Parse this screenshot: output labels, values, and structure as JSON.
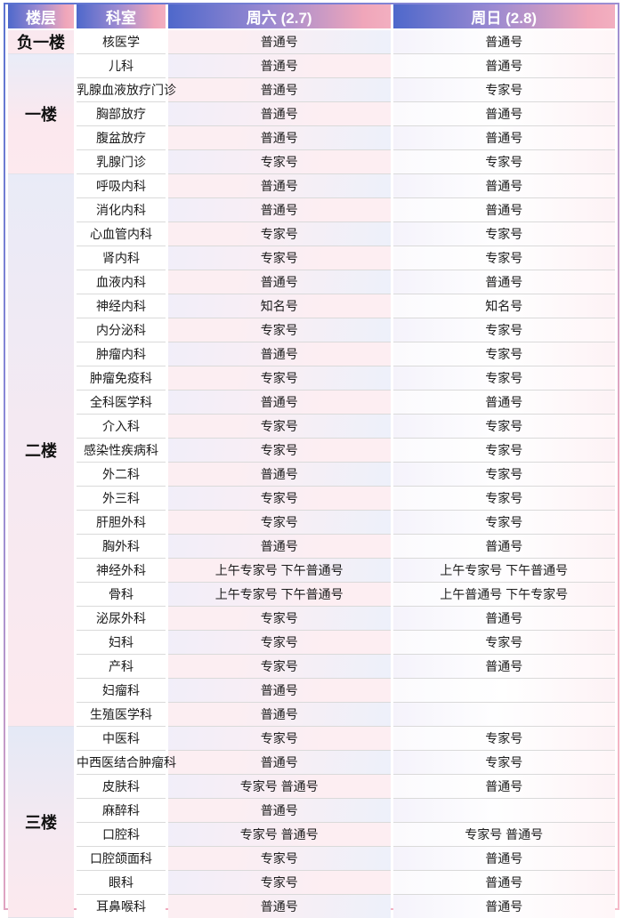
{
  "header": {
    "columns": [
      "楼层",
      "科室",
      "周六 (2.7)",
      "周日 (2.8)"
    ]
  },
  "floors": [
    {
      "label": "负一楼",
      "departments": [
        {
          "name": "核医学",
          "sat": "普通号",
          "sun": "普通号"
        }
      ]
    },
    {
      "label": "一楼",
      "departments": [
        {
          "name": "儿科",
          "sat": "普通号",
          "sun": "普通号"
        },
        {
          "name": "乳腺血液放疗门诊",
          "sat": "普通号",
          "sun": "专家号"
        },
        {
          "name": "胸部放疗",
          "sat": "普通号",
          "sun": "普通号"
        },
        {
          "name": "腹盆放疗",
          "sat": "普通号",
          "sun": "普通号"
        },
        {
          "name": "乳腺门诊",
          "sat": "专家号",
          "sun": "专家号"
        }
      ]
    },
    {
      "label": "二楼",
      "departments": [
        {
          "name": "呼吸内科",
          "sat": "普通号",
          "sun": "普通号"
        },
        {
          "name": "消化内科",
          "sat": "普通号",
          "sun": "普通号"
        },
        {
          "name": "心血管内科",
          "sat": "专家号",
          "sun": "专家号"
        },
        {
          "name": "肾内科",
          "sat": "专家号",
          "sun": "专家号"
        },
        {
          "name": "血液内科",
          "sat": "普通号",
          "sun": "普通号"
        },
        {
          "name": "神经内科",
          "sat": "知名号",
          "sun": "知名号"
        },
        {
          "name": "内分泌科",
          "sat": "专家号",
          "sun": "专家号"
        },
        {
          "name": "肿瘤内科",
          "sat": "普通号",
          "sun": "专家号"
        },
        {
          "name": "肿瘤免疫科",
          "sat": "专家号",
          "sun": "专家号"
        },
        {
          "name": "全科医学科",
          "sat": "普通号",
          "sun": "普通号"
        },
        {
          "name": "介入科",
          "sat": "专家号",
          "sun": "专家号"
        },
        {
          "name": "感染性疾病科",
          "sat": "专家号",
          "sun": "专家号"
        },
        {
          "name": "外二科",
          "sat": "普通号",
          "sun": "专家号"
        },
        {
          "name": "外三科",
          "sat": "专家号",
          "sun": "专家号"
        },
        {
          "name": "肝胆外科",
          "sat": "专家号",
          "sun": "专家号"
        },
        {
          "name": "胸外科",
          "sat": "普通号",
          "sun": "普通号"
        },
        {
          "name": "神经外科",
          "sat": "上午专家号 下午普通号",
          "sun": "上午专家号 下午普通号"
        },
        {
          "name": "骨科",
          "sat": "上午专家号 下午普通号",
          "sun": "上午普通号 下午专家号"
        },
        {
          "name": "泌尿外科",
          "sat": "专家号",
          "sun": "普通号"
        },
        {
          "name": "妇科",
          "sat": "专家号",
          "sun": "专家号"
        },
        {
          "name": "产科",
          "sat": "专家号",
          "sun": "普通号"
        },
        {
          "name": "妇瘤科",
          "sat": "普通号",
          "sun": ""
        },
        {
          "name": "生殖医学科",
          "sat": "普通号",
          "sun": ""
        }
      ]
    },
    {
      "label": "三楼",
      "departments": [
        {
          "name": "中医科",
          "sat": "专家号",
          "sun": "专家号"
        },
        {
          "name": "中西医结合肿瘤科",
          "sat": "普通号",
          "sun": "专家号"
        },
        {
          "name": "皮肤科",
          "sat": "专家号 普通号",
          "sun": "普通号"
        },
        {
          "name": "麻醉科",
          "sat": "普通号",
          "sun": ""
        },
        {
          "name": "口腔科",
          "sat": "专家号 普通号",
          "sun": "专家号 普通号"
        },
        {
          "name": "口腔颌面科",
          "sat": "专家号",
          "sun": "普通号"
        },
        {
          "name": "眼科",
          "sat": "专家号",
          "sun": "普通号"
        },
        {
          "name": "耳鼻喉科",
          "sat": "普通号",
          "sun": "普通号"
        }
      ]
    }
  ],
  "colors": {
    "header_gradient_start": "#4e68cb",
    "header_gradient_end": "#f2afc0",
    "border_gradient_start": "#5b73d0",
    "border_gradient_end": "#f6bac9",
    "row_separator": "#dadada",
    "tint_pink": "#fceef2",
    "tint_lavender": "#edf0fa"
  }
}
